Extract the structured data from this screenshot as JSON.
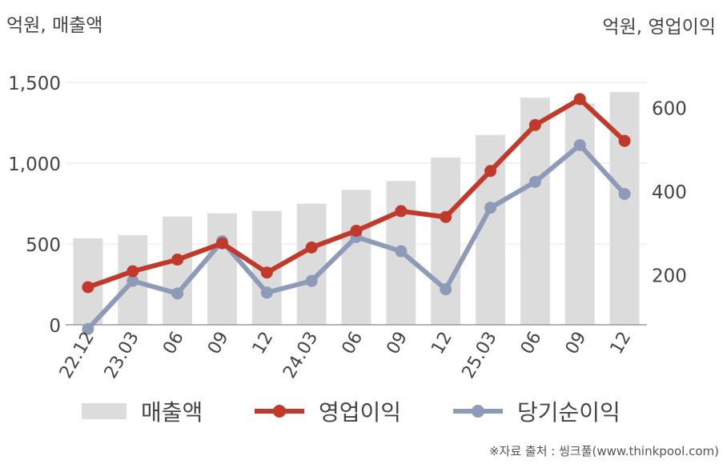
{
  "units": {
    "left": "억원, 매출액",
    "right": "억원, 영업이익"
  },
  "source": "※자료 출처 : 씽크풀(www.thinkpool.com)",
  "colors": {
    "revenue": "#dcdcdc",
    "operating_profit": "#c0392b",
    "net_income": "#8e9bb8",
    "axis": "#999999",
    "grid": "#e6e6e6"
  },
  "legend": {
    "revenue": "매출액",
    "operating_profit": "영업이익",
    "net_income": "당기순이익"
  },
  "chart_data": {
    "type": "bar",
    "categories": [
      "22.12",
      "23.03",
      "06",
      "09",
      "12",
      "24.03",
      "06",
      "09",
      "12",
      "25.03",
      "06",
      "09",
      "12"
    ],
    "y_left": {
      "min": 0,
      "max": 1500,
      "ticks": [
        0,
        500,
        1000,
        1500
      ],
      "tick_labels": [
        "0",
        "500",
        "1,000",
        "1,500"
      ]
    },
    "y_right": {
      "min": 80,
      "max": 660,
      "ticks": [
        200,
        400,
        600
      ],
      "tick_labels": [
        "200",
        "400",
        "600"
      ]
    },
    "grid": true,
    "legend_position": "bottom",
    "series": [
      {
        "name": "매출액",
        "type": "bar",
        "axis": "left",
        "values": [
          535,
          555,
          670,
          690,
          705,
          750,
          835,
          890,
          1035,
          1175,
          1405,
          1370,
          1440
        ]
      },
      {
        "name": "영업이익",
        "type": "line",
        "axis": "right",
        "values": [
          170,
          208,
          236,
          275,
          205,
          265,
          305,
          352,
          338,
          448,
          558,
          620,
          520
        ]
      },
      {
        "name": "당기순이익",
        "type": "line",
        "axis": "right",
        "values": [
          70,
          185,
          155,
          280,
          157,
          185,
          290,
          256,
          165,
          360,
          422,
          510,
          393
        ]
      }
    ]
  }
}
